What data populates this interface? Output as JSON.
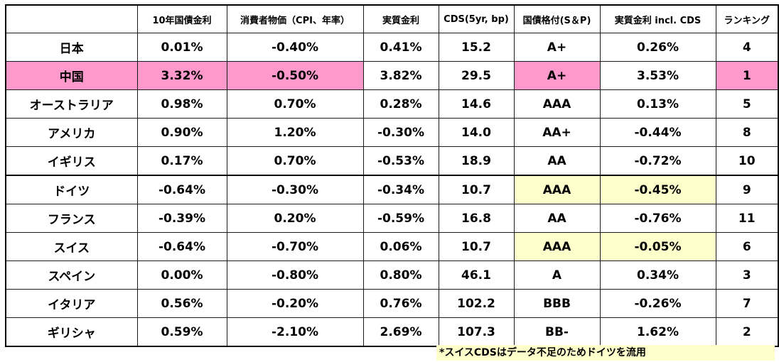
{
  "chart_data": {
    "type": "table",
    "columns": [
      "",
      "10年国債金利",
      "消費者物価（CPI、年率）",
      "実質金利",
      "CDS(5yr, bp)",
      "国債格付(S＆P)",
      "実質金利 incl. CDS",
      "ランキング"
    ],
    "rows": [
      {
        "country": "日本",
        "cells": [
          "0.01%",
          "-0.40%",
          "0.41%",
          "15.2",
          "A+",
          "0.26%",
          "4"
        ]
      },
      {
        "country": "中国",
        "cells": [
          "3.32%",
          "-0.50%",
          "3.82%",
          "29.5",
          "A+",
          "3.53%",
          "1"
        ]
      },
      {
        "country": "オーストラリア",
        "cells": [
          "0.98%",
          "0.70%",
          "0.28%",
          "14.6",
          "AAA",
          "0.13%",
          "5"
        ]
      },
      {
        "country": "アメリカ",
        "cells": [
          "0.90%",
          "1.20%",
          "-0.30%",
          "14.0",
          "AA+",
          "-0.44%",
          "8"
        ]
      },
      {
        "country": "イギリス",
        "cells": [
          "0.17%",
          "0.70%",
          "-0.53%",
          "18.9",
          "AA",
          "-0.72%",
          "10"
        ]
      },
      {
        "country": "ドイツ",
        "cells": [
          "-0.64%",
          "-0.30%",
          "-0.34%",
          "10.7",
          "AAA",
          "-0.45%",
          "9"
        ]
      },
      {
        "country": "フランス",
        "cells": [
          "-0.39%",
          "0.20%",
          "-0.59%",
          "16.8",
          "AA",
          "-0.76%",
          "11"
        ]
      },
      {
        "country": "スイス",
        "cells": [
          "-0.64%",
          "-0.70%",
          "0.06%",
          "10.7",
          "AAA",
          "-0.05%",
          "6"
        ]
      },
      {
        "country": "スペイン",
        "cells": [
          "0.00%",
          "-0.80%",
          "0.80%",
          "46.1",
          "A",
          "0.34%",
          "3"
        ]
      },
      {
        "country": "イタリア",
        "cells": [
          "0.56%",
          "-0.20%",
          "0.76%",
          "102.2",
          "BBB",
          "-0.26%",
          "7"
        ]
      },
      {
        "country": "ギリシャ",
        "cells": [
          "0.59%",
          "-2.10%",
          "2.69%",
          "107.3",
          "BB-",
          "1.62%",
          "2"
        ]
      }
    ],
    "highlights": {
      "pink_row": 1,
      "pink_cols": [
        0,
        1,
        4,
        6
      ],
      "yellow_cells": [
        [
          5,
          4
        ],
        [
          5,
          5
        ],
        [
          7,
          4
        ],
        [
          7,
          5
        ]
      ],
      "pink_color": "#ff99cc",
      "yellow_color": "#ffffcc"
    },
    "separator_before_row": 5,
    "note": "*スイスCDSはデータ不足のためドイツを流用"
  }
}
